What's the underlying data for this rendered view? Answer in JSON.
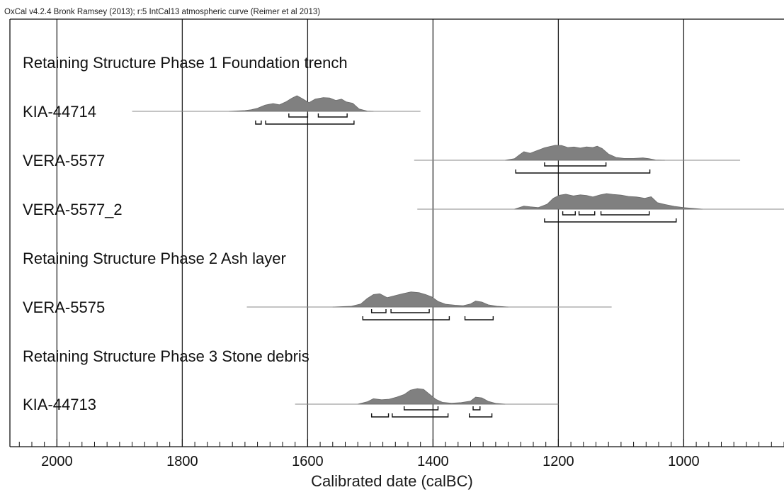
{
  "header": "OxCal v4.2.4 Bronk Ramsey (2013); r:5 IntCal13 atmospheric curve (Reimer et al 2013)",
  "chart_data": {
    "type": "density-multiplot",
    "xlabel": "Calibrated date (calBC)",
    "x_ticks": [
      "2000",
      "1800",
      "1600",
      "1400",
      "1200",
      "1000"
    ],
    "x_tick_values": [
      2000,
      1800,
      1600,
      1400,
      1200,
      1000
    ],
    "xlim": [
      2075,
      840
    ],
    "grid": true,
    "rows": [
      {
        "kind": "group",
        "label": "Retaining Structure Phase 1 Foundation trench"
      },
      {
        "kind": "sample",
        "label": "KIA-44714",
        "range": [
          1880,
          1420
        ],
        "density": [
          [
            1725,
            0
          ],
          [
            1700,
            0.05
          ],
          [
            1690,
            0.1
          ],
          [
            1680,
            0.2
          ],
          [
            1668,
            0.4
          ],
          [
            1655,
            0.5
          ],
          [
            1645,
            0.42
          ],
          [
            1635,
            0.6
          ],
          [
            1625,
            0.85
          ],
          [
            1617,
            1.0
          ],
          [
            1608,
            0.8
          ],
          [
            1598,
            0.55
          ],
          [
            1588,
            0.78
          ],
          [
            1575,
            0.88
          ],
          [
            1565,
            0.86
          ],
          [
            1555,
            0.7
          ],
          [
            1546,
            0.78
          ],
          [
            1538,
            0.6
          ],
          [
            1528,
            0.52
          ],
          [
            1518,
            0.15
          ],
          [
            1505,
            0.02
          ],
          [
            1495,
            0
          ]
        ],
        "hpd68": [
          [
            1630,
            1600
          ],
          [
            1583,
            1537
          ]
        ],
        "hpd95": [
          [
            1683,
            1674
          ],
          [
            1667,
            1526
          ]
        ]
      },
      {
        "kind": "sample",
        "label": "VERA-5577",
        "range": [
          1430,
          910
        ],
        "density": [
          [
            1285,
            0
          ],
          [
            1270,
            0.1
          ],
          [
            1262,
            0.35
          ],
          [
            1255,
            0.55
          ],
          [
            1245,
            0.45
          ],
          [
            1235,
            0.6
          ],
          [
            1222,
            0.8
          ],
          [
            1205,
            0.96
          ],
          [
            1195,
            0.95
          ],
          [
            1185,
            0.82
          ],
          [
            1175,
            0.85
          ],
          [
            1165,
            0.78
          ],
          [
            1155,
            0.86
          ],
          [
            1145,
            0.82
          ],
          [
            1138,
            0.9
          ],
          [
            1130,
            0.75
          ],
          [
            1120,
            0.4
          ],
          [
            1108,
            0.18
          ],
          [
            1095,
            0.12
          ],
          [
            1080,
            0.12
          ],
          [
            1065,
            0.15
          ],
          [
            1055,
            0.1
          ],
          [
            1045,
            0.02
          ],
          [
            1030,
            0
          ]
        ],
        "hpd68": [
          [
            1222,
            1124
          ]
        ],
        "hpd95": [
          [
            1268,
            1054
          ]
        ]
      },
      {
        "kind": "sample",
        "label": "VERA-5577_2",
        "range": [
          1425,
          840
        ],
        "density": [
          [
            1270,
            0
          ],
          [
            1255,
            0.2
          ],
          [
            1245,
            0.15
          ],
          [
            1232,
            0.1
          ],
          [
            1218,
            0.32
          ],
          [
            1208,
            0.7
          ],
          [
            1198,
            0.9
          ],
          [
            1188,
            0.96
          ],
          [
            1176,
            0.85
          ],
          [
            1165,
            0.92
          ],
          [
            1155,
            0.88
          ],
          [
            1145,
            0.78
          ],
          [
            1133,
            0.92
          ],
          [
            1123,
            1.0
          ],
          [
            1113,
            0.95
          ],
          [
            1100,
            0.9
          ],
          [
            1088,
            0.82
          ],
          [
            1075,
            0.78
          ],
          [
            1062,
            0.7
          ],
          [
            1052,
            0.8
          ],
          [
            1042,
            0.42
          ],
          [
            1030,
            0.3
          ],
          [
            1015,
            0.18
          ],
          [
            1000,
            0.1
          ],
          [
            985,
            0.05
          ],
          [
            970,
            0
          ]
        ],
        "hpd68": [
          [
            1193,
            1173
          ],
          [
            1167,
            1142
          ],
          [
            1132,
            1055
          ]
        ],
        "hpd95": [
          [
            1222,
            1012
          ]
        ]
      },
      {
        "kind": "group",
        "label": "Retaining Structure Phase 2 Ash layer"
      },
      {
        "kind": "sample",
        "label": "VERA-5575",
        "range": [
          1697,
          1115
        ],
        "density": [
          [
            1560,
            0
          ],
          [
            1530,
            0.05
          ],
          [
            1515,
            0.2
          ],
          [
            1505,
            0.55
          ],
          [
            1495,
            0.8
          ],
          [
            1485,
            0.85
          ],
          [
            1473,
            0.6
          ],
          [
            1462,
            0.72
          ],
          [
            1448,
            0.86
          ],
          [
            1435,
            0.97
          ],
          [
            1422,
            0.92
          ],
          [
            1412,
            0.8
          ],
          [
            1402,
            0.65
          ],
          [
            1392,
            0.36
          ],
          [
            1380,
            0.18
          ],
          [
            1365,
            0.12
          ],
          [
            1352,
            0.08
          ],
          [
            1340,
            0.2
          ],
          [
            1332,
            0.38
          ],
          [
            1322,
            0.32
          ],
          [
            1312,
            0.14
          ],
          [
            1298,
            0.05
          ],
          [
            1280,
            0
          ]
        ],
        "hpd68": [
          [
            1498,
            1475
          ],
          [
            1467,
            1406
          ]
        ],
        "hpd95": [
          [
            1512,
            1374
          ],
          [
            1349,
            1304
          ]
        ]
      },
      {
        "kind": "group",
        "label": "Retaining Structure Phase 3 Stone debris"
      },
      {
        "kind": "sample",
        "label": "KIA-44713",
        "range": [
          1620,
          1200
        ],
        "density": [
          [
            1520,
            0
          ],
          [
            1505,
            0.15
          ],
          [
            1495,
            0.35
          ],
          [
            1482,
            0.28
          ],
          [
            1470,
            0.32
          ],
          [
            1458,
            0.45
          ],
          [
            1446,
            0.62
          ],
          [
            1436,
            0.9
          ],
          [
            1425,
            1.0
          ],
          [
            1415,
            0.95
          ],
          [
            1405,
            0.62
          ],
          [
            1395,
            0.3
          ],
          [
            1385,
            0.12
          ],
          [
            1370,
            0.06
          ],
          [
            1355,
            0.1
          ],
          [
            1340,
            0.2
          ],
          [
            1332,
            0.45
          ],
          [
            1322,
            0.4
          ],
          [
            1312,
            0.18
          ],
          [
            1300,
            0.05
          ],
          [
            1285,
            0
          ]
        ],
        "hpd68": [
          [
            1446,
            1392
          ],
          [
            1336,
            1325
          ]
        ],
        "hpd95": [
          [
            1498,
            1471
          ],
          [
            1465,
            1376
          ],
          [
            1342,
            1306
          ]
        ]
      }
    ]
  }
}
